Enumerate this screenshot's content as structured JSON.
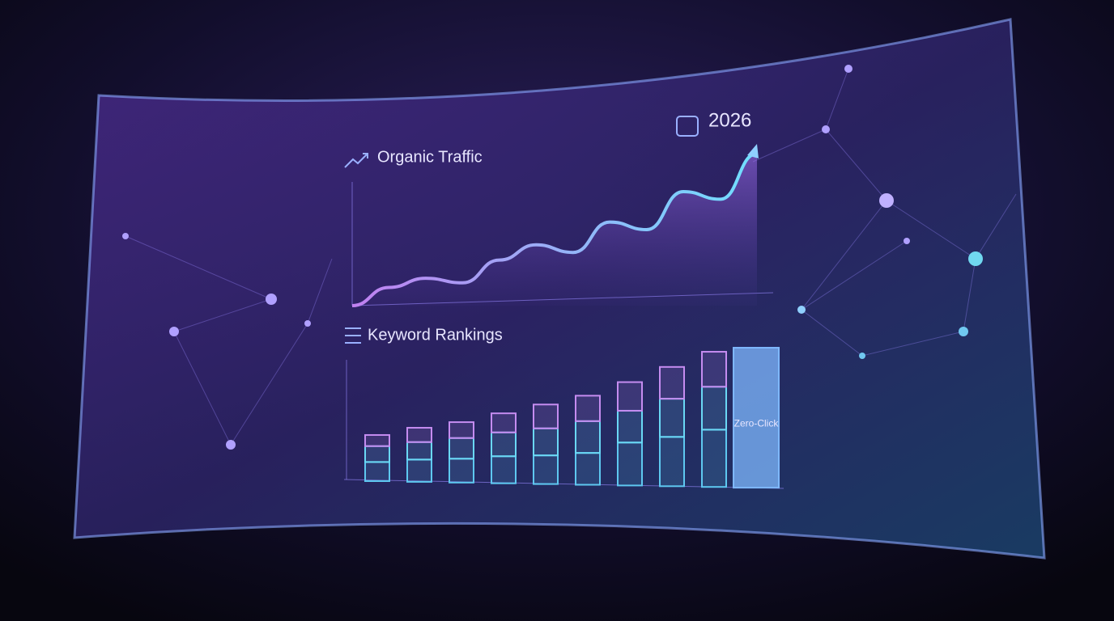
{
  "chart_data": [
    {
      "type": "line",
      "title": "Organic Traffic",
      "annotation": "2026",
      "categories": [
        null,
        null,
        null,
        null,
        null,
        null,
        null,
        null,
        null,
        null,
        null,
        null
      ],
      "values": [
        0,
        12,
        18,
        15,
        30,
        40,
        35,
        55,
        50,
        75,
        70,
        100
      ],
      "color": "#8fd0ff",
      "ylim": [
        0,
        100
      ]
    },
    {
      "type": "bar",
      "title": "Keyword Rankings",
      "stacked": true,
      "categories": [
        null,
        null,
        null,
        null,
        null,
        null,
        null,
        null,
        null,
        "Zero-Click"
      ],
      "series": [
        {
          "color": "#5ec8f0",
          "values": [
            24,
            28,
            30,
            34,
            36,
            40,
            54,
            62,
            72,
            null
          ]
        },
        {
          "color": "#6ad8f5",
          "values": [
            20,
            22,
            26,
            30,
            34,
            40,
            40,
            48,
            54,
            null
          ]
        },
        {
          "color": "#c58cf0",
          "values": [
            14,
            18,
            20,
            24,
            30,
            32,
            36,
            40,
            44,
            null
          ]
        },
        {
          "color": "#7fb8ff",
          "values": [
            null,
            null,
            null,
            null,
            null,
            null,
            null,
            null,
            null,
            176
          ]
        }
      ],
      "ylim": [
        0,
        180
      ]
    }
  ]
}
